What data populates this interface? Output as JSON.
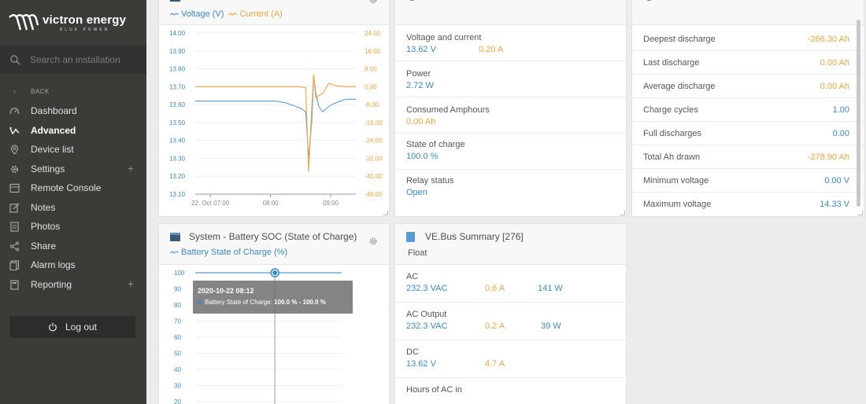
{
  "brand": {
    "name": "victron energy",
    "tagline": "BLUE POWER"
  },
  "sidebar": {
    "search_placeholder": "Search an installation",
    "back_label": "BACK",
    "items": [
      {
        "label": "Dashboard",
        "icon": "gauge-icon"
      },
      {
        "label": "Advanced",
        "icon": "analytics-icon"
      },
      {
        "label": "Device list",
        "icon": "location-pin-icon"
      },
      {
        "label": "Settings",
        "icon": "gear-icon"
      },
      {
        "label": "Remote Console",
        "icon": "console-icon"
      },
      {
        "label": "Notes",
        "icon": "notes-icon"
      },
      {
        "label": "Photos",
        "icon": "photos-icon"
      },
      {
        "label": "Share",
        "icon": "share-icon"
      },
      {
        "label": "Alarm logs",
        "icon": "alarm-log-icon"
      },
      {
        "label": "Reporting",
        "icon": "reporting-icon"
      }
    ],
    "plus_glyph": "+",
    "logout_label": "Log out"
  },
  "colors": {
    "voltage": "#5b9bd5",
    "current": "#f4a43c",
    "sidebar_bg": "#3d3b38",
    "accent_blue": "#3b89c8"
  },
  "vc_chart": {
    "legend_voltage": "Voltage (V)",
    "legend_current": "Current (A)",
    "y_left": [
      "14.00",
      "13.90",
      "13.80",
      "13.70",
      "13.60",
      "13.50",
      "13.40",
      "13.30",
      "13.20",
      "13.10"
    ],
    "y_right": [
      "24.00",
      "16.00",
      "8.00",
      "0.00",
      "-8.00",
      "-16.00",
      "-24.00",
      "-32.00",
      "-40.00",
      "-48.00"
    ],
    "x_labels": [
      "22. Oct 07:00",
      "08:00",
      "09:00"
    ]
  },
  "chart_data": [
    {
      "type": "line",
      "title": "",
      "series": [
        {
          "name": "Voltage (V)",
          "axis": "left",
          "x": [
            "06:45",
            "07:15",
            "07:45",
            "08:05",
            "08:15",
            "08:25",
            "08:30",
            "08:35",
            "08:38",
            "08:41",
            "08:43",
            "08:45",
            "08:48",
            "08:52",
            "08:58",
            "09:05",
            "09:15",
            "09:25"
          ],
          "values": [
            13.62,
            13.62,
            13.62,
            13.62,
            13.61,
            13.59,
            13.58,
            13.56,
            13.3,
            13.5,
            13.76,
            13.67,
            13.59,
            13.56,
            13.59,
            13.61,
            13.63,
            13.63
          ]
        },
        {
          "name": "Current (A)",
          "axis": "right",
          "x": [
            "06:45",
            "07:15",
            "07:45",
            "08:05",
            "08:15",
            "08:25",
            "08:30",
            "08:35",
            "08:38",
            "08:41",
            "08:43",
            "08:45",
            "08:48",
            "08:52",
            "08:58",
            "09:05",
            "09:15",
            "09:25"
          ],
          "values": [
            0.0,
            0.0,
            0.0,
            0.0,
            0.0,
            0.0,
            0.0,
            -0.5,
            -38.0,
            -10.0,
            5.5,
            -5.0,
            -4.0,
            -3.0,
            1.5,
            0.5,
            0.0,
            0.0
          ]
        }
      ],
      "ylim_left": [
        13.1,
        14.0
      ],
      "ylim_right": [
        -48,
        24
      ],
      "grid": true
    },
    {
      "type": "line",
      "title": "System - Battery SOC (State of Charge)",
      "series": [
        {
          "name": "Battery State of Charge (%)",
          "x": [
            "06:45",
            "08:12",
            "09:25"
          ],
          "values": [
            100,
            100,
            100
          ]
        }
      ],
      "ylim": [
        20,
        100
      ],
      "grid": true
    }
  ],
  "battery": {
    "rows": [
      {
        "label": "Voltage and current",
        "v1": "13.62 V",
        "v2": "0.20 A"
      },
      {
        "label": "Power",
        "v1": "2.72 W"
      },
      {
        "label": "Consumed Amphours",
        "v1": "0.00 Ah"
      },
      {
        "label": "State of charge",
        "v1": "100.0 %"
      },
      {
        "label": "Relay status",
        "v1": "Open"
      }
    ]
  },
  "history": {
    "rows": [
      {
        "label": "Deepest discharge",
        "value": "-266.30 Ah"
      },
      {
        "label": "Last discharge",
        "value": "0.00 Ah"
      },
      {
        "label": "Average discharge",
        "value": "0.00 Ah"
      },
      {
        "label": "Charge cycles",
        "value": "1.00"
      },
      {
        "label": "Full discharges",
        "value": "0.00"
      },
      {
        "label": "Total Ah drawn",
        "value": "-278.90 Ah"
      },
      {
        "label": "Minimum voltage",
        "value": "0.00 V"
      },
      {
        "label": "Maximum voltage",
        "value": "14.33 V"
      }
    ]
  },
  "soc": {
    "title": "System - Battery SOC (State of Charge)",
    "legend": "Battery State of Charge (%)",
    "y_labels": [
      "100",
      "90",
      "80",
      "70",
      "60",
      "50",
      "40",
      "30",
      "20"
    ],
    "tooltip_time": "2020-10-22 08:12",
    "tooltip_label": "Battery State of Charge:",
    "tooltip_value": "100.0 % - 100.0 %"
  },
  "vebus": {
    "title": "VE.Bus Summary [276]",
    "state": "Float",
    "rows": [
      {
        "label": "AC",
        "v1": "232.3 VAC",
        "v2": "0.6 A",
        "v3": "141 W"
      },
      {
        "label": "AC Output",
        "v1": "232.3 VAC",
        "v2": "0.2 A",
        "v3": "39 W"
      },
      {
        "label": "DC",
        "v1": "13.62 V",
        "v2": "4.7 A"
      },
      {
        "label": "Hours of AC in"
      }
    ]
  }
}
